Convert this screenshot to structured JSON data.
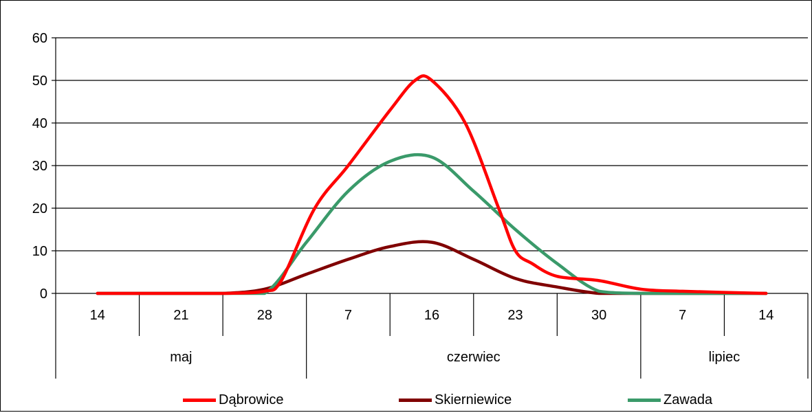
{
  "chart_data": {
    "type": "line",
    "title": "",
    "xlabel": "",
    "ylabel": "",
    "ylim": [
      0,
      60
    ],
    "yticks": [
      0,
      10,
      20,
      30,
      40,
      50,
      60
    ],
    "grid": "horizontal",
    "legend": "bottom",
    "categories": [
      "14",
      "21",
      "28",
      "7",
      "16",
      "23",
      "30",
      "7",
      "14"
    ],
    "groups": [
      {
        "label": "maj",
        "span": 3
      },
      {
        "label": "czerwiec",
        "span": 4
      },
      {
        "label": "lipiec",
        "span": 2
      }
    ],
    "series": [
      {
        "name": "Dąbrowice",
        "color": "#ff0000",
        "x": [
          0,
          1,
          1.5,
          2,
          2.2,
          2.6,
          3,
          3.5,
          3.8,
          4,
          4.4,
          4.8,
          5,
          5.2,
          5.5,
          6,
          6.5,
          7,
          8
        ],
        "y": [
          0,
          0,
          0,
          0.5,
          3,
          20,
          30,
          43,
          50,
          50,
          40,
          20,
          10,
          7,
          4,
          3,
          1,
          0.5,
          0
        ]
      },
      {
        "name": "Skierniewice",
        "color": "#800000",
        "x": [
          0,
          1,
          1.5,
          2,
          2.5,
          3,
          3.5,
          4,
          4.5,
          5,
          5.5,
          6,
          6.5,
          7,
          8
        ],
        "y": [
          0,
          0,
          0,
          1,
          4.5,
          8,
          11,
          12,
          8,
          3.5,
          1.5,
          0,
          0,
          0,
          0
        ]
      },
      {
        "name": "Zawada",
        "color": "#3a9a6a",
        "x": [
          0,
          1,
          1.5,
          2,
          2.5,
          3,
          3.5,
          4,
          4.5,
          5,
          5.5,
          6,
          6.5,
          7,
          8
        ],
        "y": [
          0,
          0,
          0,
          0,
          12,
          24,
          31,
          32,
          24,
          15,
          7,
          0.5,
          0,
          0,
          0
        ]
      }
    ]
  }
}
